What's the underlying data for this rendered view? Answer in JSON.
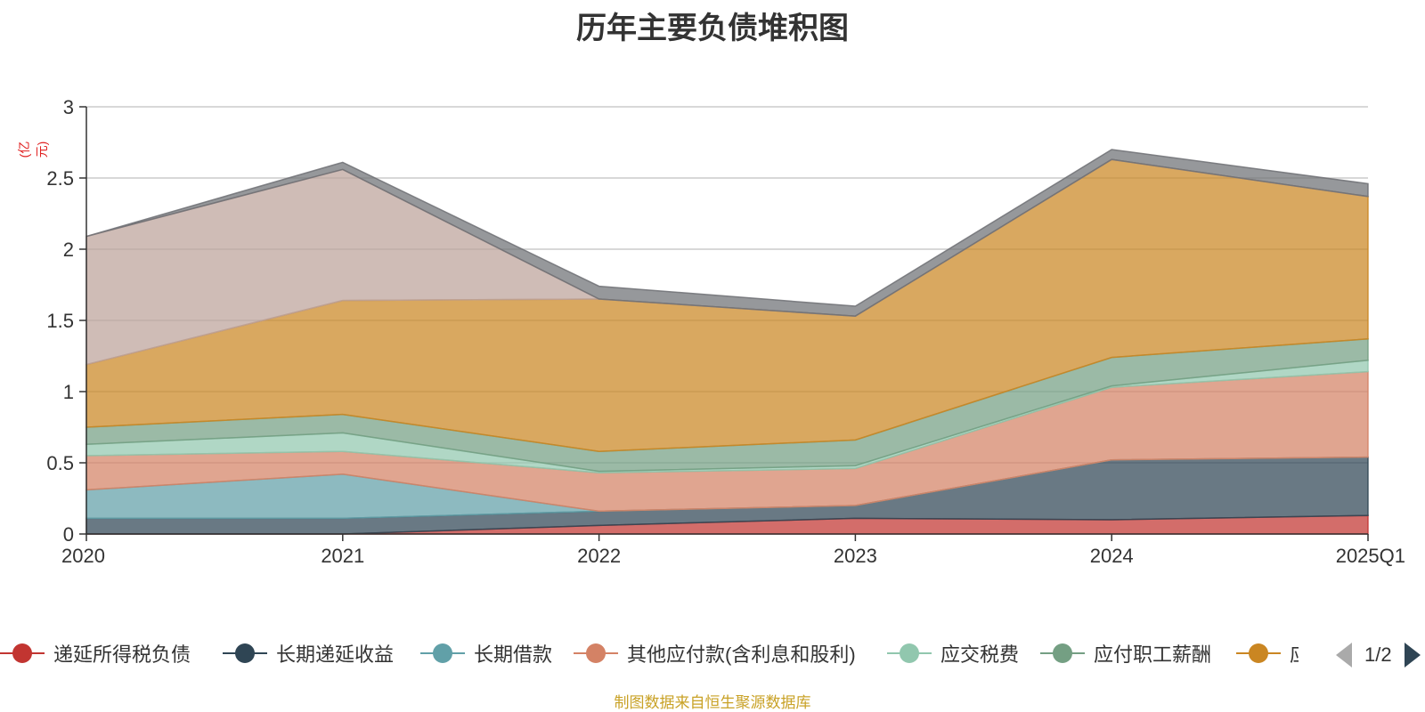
{
  "chart_data": {
    "type": "area",
    "stacked": true,
    "title": "历年主要负债堆积图",
    "unit": "(亿元)",
    "x": [
      "2020",
      "2021",
      "2022",
      "2023",
      "2024",
      "2025Q1"
    ],
    "ylim": [
      0,
      3
    ],
    "yticks": [
      "0",
      "0.5",
      "1",
      "1.5",
      "2",
      "2.5",
      "3"
    ],
    "grid": true,
    "legend_position": "bottom",
    "series": [
      {
        "name": "递延所得税负债",
        "color": "#c23531",
        "values": [
          0.0,
          0.0,
          0.06,
          0.11,
          0.1,
          0.13
        ]
      },
      {
        "name": "长期递延收益",
        "color": "#2f4554",
        "values": [
          0.11,
          0.11,
          0.1,
          0.09,
          0.42,
          0.41
        ]
      },
      {
        "name": "长期借款",
        "color": "#61a0a8",
        "values": [
          0.2,
          0.31,
          0.0,
          0.0,
          0.0,
          0.0
        ]
      },
      {
        "name": "其他应付款(含利息和股利)",
        "color": "#d48265",
        "values": [
          0.24,
          0.16,
          0.27,
          0.26,
          0.51,
          0.6
        ]
      },
      {
        "name": "应交税费",
        "color": "#91c7ae",
        "values": [
          0.08,
          0.13,
          0.01,
          0.02,
          0.01,
          0.08
        ]
      },
      {
        "name": "应付职工薪酬",
        "color": "#749f83",
        "values": [
          0.12,
          0.13,
          0.14,
          0.18,
          0.2,
          0.15
        ]
      },
      {
        "name": "应付账款",
        "color": "#ca8622",
        "values": [
          0.44,
          0.8,
          1.07,
          0.87,
          1.39,
          1.0
        ]
      },
      {
        "name": "",
        "color": "#bda29a",
        "values": [
          0.9,
          0.92,
          0.0,
          0.0,
          0.0,
          0.0
        ]
      },
      {
        "name": "",
        "color": "#6e7074",
        "values": [
          0.0,
          0.05,
          0.09,
          0.07,
          0.07,
          0.09
        ]
      }
    ]
  },
  "legend": {
    "visible_items": [
      "递延所得税负债",
      "长期递延收益",
      "长期借款",
      "其他应付款(含利息和股利)",
      "应交税费",
      "应付职工薪酬",
      "应付账款"
    ],
    "page": "1/2"
  },
  "source": "制图数据来自恒生聚源数据库"
}
